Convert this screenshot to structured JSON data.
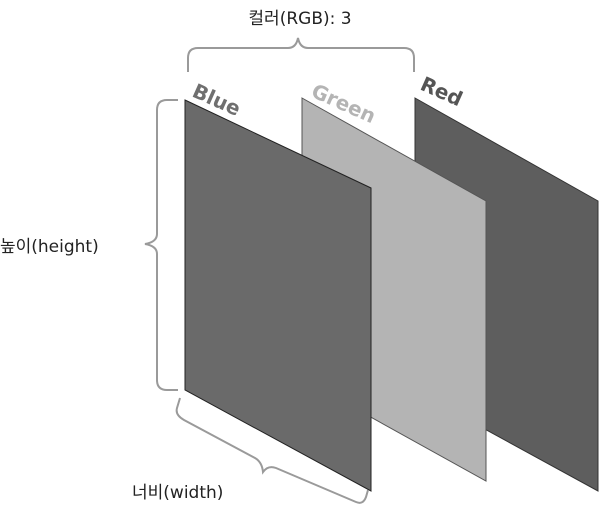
{
  "channels": [
    {
      "label": "Blue",
      "color": "#6a6a6a",
      "label_color": "#6f6f6f"
    },
    {
      "label": "Green",
      "color": "#b4b4b4",
      "label_color": "#b4b4b4"
    },
    {
      "label": "Red",
      "color": "#5e5e5e",
      "label_color": "#555555"
    }
  ],
  "dimensions": {
    "color": "컬러(RGB): 3",
    "height": "높이(height)",
    "width": "너비(width)"
  },
  "colors": {
    "brace": "#9a9a9a",
    "edge": "#222222"
  }
}
